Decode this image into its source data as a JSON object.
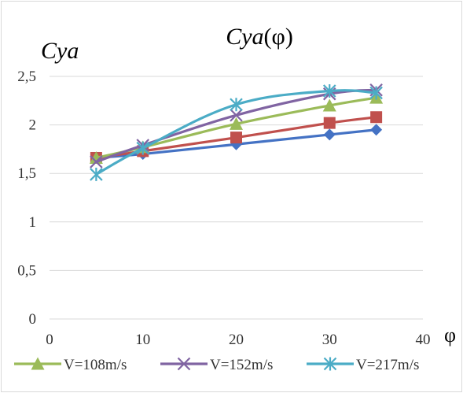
{
  "chart_data": {
    "type": "line",
    "title": "Cya(φ)",
    "title_parts": {
      "main": "Cya",
      "paren": "(φ)"
    },
    "ylabel": "Cya",
    "xlabel": "φ",
    "xlim": [
      0,
      40
    ],
    "ylim": [
      0,
      2.5
    ],
    "xticks": [
      0,
      10,
      20,
      30,
      40
    ],
    "xtick_labels": [
      "0",
      "10",
      "20",
      "30",
      "40"
    ],
    "yticks": [
      0,
      0.5,
      1,
      1.5,
      2,
      2.5
    ],
    "ytick_labels": [
      "0",
      "0,5",
      "1",
      "1,5",
      "2",
      "2,5"
    ],
    "grid": {
      "horizontal": true,
      "vertical": false
    },
    "legend_placement": "bottom",
    "x": [
      5,
      10,
      20,
      30,
      35
    ],
    "series": [
      {
        "values": [
          1.66,
          1.7,
          1.8,
          1.9,
          1.95
        ],
        "color": "#4472C4",
        "marker": "diamond",
        "in_legend": false
      },
      {
        "values": [
          1.66,
          1.73,
          1.87,
          2.02,
          2.08
        ],
        "color": "#C0504D",
        "marker": "square",
        "in_legend": false
      },
      {
        "name": "V=108m/s",
        "values": [
          1.66,
          1.77,
          2.01,
          2.2,
          2.28
        ],
        "color": "#9BBB59",
        "marker": "triangle",
        "in_legend": true
      },
      {
        "name": "V=152m/s",
        "values": [
          1.62,
          1.79,
          2.1,
          2.32,
          2.36
        ],
        "color": "#8064A2",
        "marker": "x",
        "in_legend": true
      },
      {
        "name": "V=217m/s",
        "values": [
          1.49,
          1.76,
          2.21,
          2.35,
          2.33
        ],
        "color": "#4BACC6",
        "marker": "star",
        "in_legend": true
      }
    ]
  }
}
